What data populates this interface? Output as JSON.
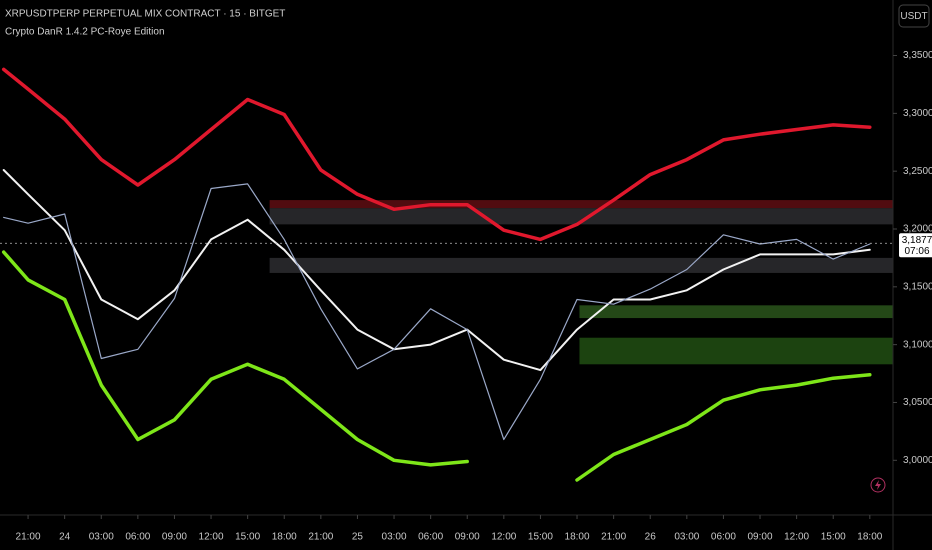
{
  "chart_data": {
    "type": "line",
    "title": "XRPUSDTPERP PERPETUAL MIX CONTRACT · 15 · BITGET",
    "subtitle": "Crypto DanR 1.4.2 PC-Roye Edition",
    "currency": "USDT",
    "x": [
      -2,
      0,
      3,
      6,
      9,
      12,
      15,
      18,
      21,
      24,
      27,
      30,
      33,
      36,
      39,
      42,
      45,
      48,
      51,
      54,
      57,
      60,
      63,
      66,
      69
    ],
    "series": [
      {
        "color": "#e0182d",
        "width": 3.5,
        "values": [
          3.338,
          3.321,
          3.295,
          3.26,
          3.238,
          3.26,
          3.286,
          3.312,
          3.299,
          3.251,
          3.23,
          3.217,
          3.221,
          3.221,
          3.199,
          3.191,
          3.204,
          3.225,
          3.247,
          3.26,
          3.277,
          3.282,
          3.286,
          3.29,
          3.288
        ]
      },
      {
        "color": "#7ee619",
        "width": 3.5,
        "values": [
          3.18,
          3.156,
          3.139,
          3.065,
          3.018,
          3.035,
          3.07,
          3.083,
          3.07,
          3.044,
          3.018,
          3.0,
          2.996,
          2.999,
          null,
          null,
          2.983,
          3.005,
          3.018,
          3.031,
          3.052,
          3.061,
          3.065,
          3.071,
          3.074
        ]
      },
      {
        "color": "#f2f2f2",
        "width": 2,
        "values": [
          3.251,
          3.23,
          3.199,
          3.139,
          3.122,
          3.147,
          3.191,
          3.208,
          3.182,
          3.147,
          3.113,
          3.096,
          3.1,
          3.113,
          3.087,
          3.078,
          3.113,
          3.139,
          3.139,
          3.147,
          3.165,
          3.178,
          3.178,
          3.178,
          3.182
        ]
      },
      {
        "color": "#9aa8c8",
        "width": 1.2,
        "values": [
          3.21,
          3.205,
          3.213,
          3.088,
          3.096,
          3.14,
          3.235,
          3.239,
          3.191,
          3.131,
          3.079,
          3.096,
          3.131,
          3.113,
          3.018,
          3.07,
          3.139,
          3.135,
          3.148,
          3.165,
          3.195,
          3.187,
          3.191,
          3.174,
          3.187
        ]
      }
    ],
    "zones": [
      {
        "low": 3.218,
        "high": 3.225,
        "x_start": 19.8,
        "color": "#5a0d12"
      },
      {
        "low": 3.204,
        "high": 3.218,
        "x_start": 19.8,
        "color": "#2a2a2e"
      },
      {
        "low": 3.162,
        "high": 3.175,
        "x_start": 19.8,
        "color": "#2a2a2e"
      },
      {
        "low": 3.123,
        "high": 3.134,
        "x_start": 45.2,
        "color": "#28501a"
      },
      {
        "low": 3.083,
        "high": 3.106,
        "x_start": 45.2,
        "color": "#1f4a12"
      }
    ],
    "last_price": {
      "value": 3.1877,
      "label": "3,1877"
    },
    "countdown": "07:06",
    "xlim": [
      -2.3,
      70.9
    ],
    "ylim": [
      2.97,
      3.398
    ],
    "xticks": [
      {
        "value": 0,
        "label": "21:00"
      },
      {
        "value": 3,
        "label": "24"
      },
      {
        "value": 6,
        "label": "03:00"
      },
      {
        "value": 9,
        "label": "06:00"
      },
      {
        "value": 12,
        "label": "09:00"
      },
      {
        "value": 15,
        "label": "12:00"
      },
      {
        "value": 18,
        "label": "15:00"
      },
      {
        "value": 21,
        "label": "18:00"
      },
      {
        "value": 24,
        "label": "21:00"
      },
      {
        "value": 27,
        "label": "25"
      },
      {
        "value": 30,
        "label": "03:00"
      },
      {
        "value": 33,
        "label": "06:00"
      },
      {
        "value": 36,
        "label": "09:00"
      },
      {
        "value": 39,
        "label": "12:00"
      },
      {
        "value": 42,
        "label": "15:00"
      },
      {
        "value": 45,
        "label": "18:00"
      },
      {
        "value": 48,
        "label": "21:00"
      },
      {
        "value": 51,
        "label": "26"
      },
      {
        "value": 54,
        "label": "03:00"
      },
      {
        "value": 57,
        "label": "06:00"
      },
      {
        "value": 60,
        "label": "09:00"
      },
      {
        "value": 63,
        "label": "12:00"
      },
      {
        "value": 66,
        "label": "15:00"
      },
      {
        "value": 69,
        "label": "18:00"
      }
    ],
    "yticks": [
      {
        "value": 3.0,
        "label": "3,0000"
      },
      {
        "value": 3.05,
        "label": "3,0500"
      },
      {
        "value": 3.1,
        "label": "3,1000"
      },
      {
        "value": 3.15,
        "label": "3,1500"
      },
      {
        "value": 3.2,
        "label": "3,2000"
      },
      {
        "value": 3.25,
        "label": "3,2500"
      },
      {
        "value": 3.3,
        "label": "3,3000"
      },
      {
        "value": 3.35,
        "label": "3,3500"
      }
    ],
    "grid": false
  }
}
